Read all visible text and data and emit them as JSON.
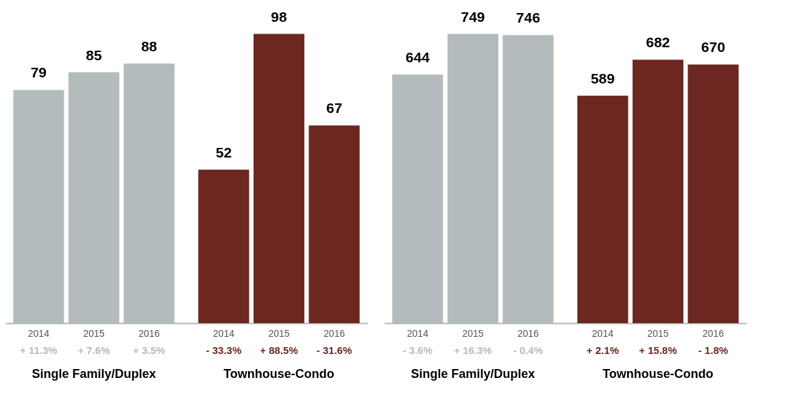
{
  "chart_data": [
    {
      "type": "bar",
      "categories": [
        "2014",
        "2015",
        "2016",
        "2014",
        "2015",
        "2016"
      ],
      "series": [
        {
          "color": "#b4bbbc",
          "values": [
            79,
            85,
            88,
            null,
            null,
            null
          ]
        },
        {
          "color": "#6b2720",
          "values": [
            null,
            null,
            null,
            52,
            98,
            67
          ]
        }
      ],
      "data_labels": true,
      "annotations": [
        "+ 11.3%",
        "+ 7.6%",
        "+ 3.5%",
        "- 33.3%",
        "+ 88.5%",
        "- 31.6%",
        "Single Family/Duplex",
        "Townhouse-Condo"
      ]
    },
    {
      "type": "bar",
      "categories": [
        "2014",
        "2015",
        "2016",
        "2014",
        "2015",
        "2016"
      ],
      "series": [
        {
          "color": "#b4bbbc",
          "values": [
            644,
            749,
            746,
            null,
            null,
            null
          ]
        },
        {
          "color": "#6b2720",
          "values": [
            null,
            null,
            null,
            589,
            682,
            670
          ]
        }
      ],
      "data_labels": true,
      "annotations": [
        "- 3.6%",
        "+ 16.3%",
        "- 0.4%",
        "+ 2.1%",
        "+ 15.8%",
        "- 1.8%",
        "Single Family/Duplex",
        "Townhouse-Condo"
      ]
    }
  ]
}
